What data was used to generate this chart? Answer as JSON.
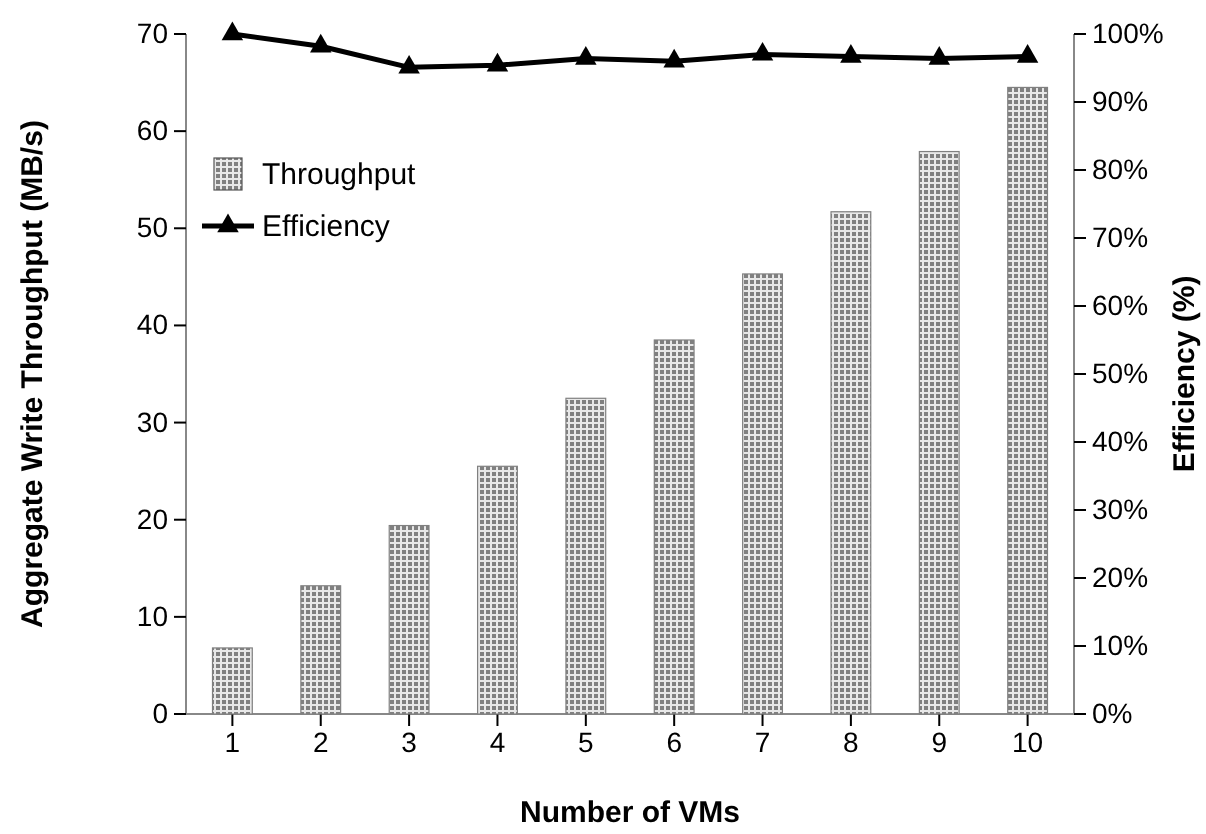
{
  "chart_data": {
    "type": "bar",
    "xlabel": "Number of VMs",
    "ylabel": "Aggregate Write Throughput (MB/s)",
    "y2label": "Efficiency (%)",
    "categories": [
      "1",
      "2",
      "3",
      "4",
      "5",
      "6",
      "7",
      "8",
      "9",
      "10"
    ],
    "series": [
      {
        "name": "Throughput",
        "color": "#808080",
        "values": [
          6.8,
          13.2,
          19.4,
          25.5,
          32.5,
          38.5,
          45.3,
          51.7,
          57.9,
          64.5
        ]
      },
      {
        "name": "Efficiency",
        "type": "line",
        "axis": "y2",
        "color": "#000000",
        "values": [
          100,
          98.2,
          95.1,
          95.4,
          96.4,
          96.0,
          97.0,
          96.7,
          96.4,
          96.7
        ]
      }
    ],
    "ylim": [
      0,
      70
    ],
    "yticks": [
      0,
      10,
      20,
      30,
      40,
      50,
      60,
      70
    ],
    "y2lim": [
      0,
      100
    ],
    "y2ticks": [
      {
        "value": 0,
        "label": "0%"
      },
      {
        "value": 10,
        "label": "10%"
      },
      {
        "value": 20,
        "label": "20%"
      },
      {
        "value": 30,
        "label": "30%"
      },
      {
        "value": 40,
        "label": "40%"
      },
      {
        "value": 50,
        "label": "50%"
      },
      {
        "value": 60,
        "label": "60%"
      },
      {
        "value": 70,
        "label": "70%"
      },
      {
        "value": 80,
        "label": "80%"
      },
      {
        "value": 90,
        "label": "90%"
      },
      {
        "value": 100,
        "label": "100%"
      }
    ],
    "legend": "top left",
    "marker": "triangle",
    "line_style": "solid",
    "grid": false
  }
}
